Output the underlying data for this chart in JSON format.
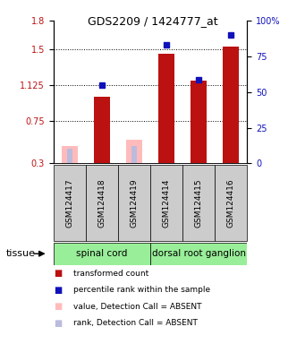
{
  "title": "GDS2209 / 1424777_at",
  "samples": [
    "GSM124417",
    "GSM124418",
    "GSM124419",
    "GSM124414",
    "GSM124415",
    "GSM124416"
  ],
  "bar_values": [
    0.48,
    1.0,
    0.55,
    1.45,
    1.17,
    1.53
  ],
  "rank_values": [
    0.45,
    1.125,
    0.48,
    1.55,
    1.18,
    1.65
  ],
  "absent": [
    true,
    false,
    true,
    false,
    false,
    false
  ],
  "ylim_left": [
    0.3,
    1.8
  ],
  "ylim_right": [
    0,
    100
  ],
  "yticks_left": [
    0.3,
    0.75,
    1.125,
    1.5,
    1.8
  ],
  "yticks_right": [
    0,
    25,
    50,
    75,
    100
  ],
  "ytick_labels_left": [
    "0.3",
    "0.75",
    "1.125",
    "1.5",
    "1.8"
  ],
  "ytick_labels_right": [
    "0",
    "25",
    "50",
    "75",
    "100%"
  ],
  "red_color": "#bb1111",
  "pink_color": "#ffbbbb",
  "blue_color": "#1111bb",
  "light_blue_color": "#bbbbdd",
  "green_tissue_color": "#99ee99",
  "bar_width": 0.5,
  "marker_size": 5,
  "spinal_cord_samples": [
    0,
    1,
    2
  ],
  "dorsal_samples": [
    3,
    4,
    5
  ],
  "tissue_labels": [
    "spinal cord",
    "dorsal root ganglion"
  ],
  "legend_items": [
    [
      "#bb1111",
      "transformed count"
    ],
    [
      "#1111bb",
      "percentile rank within the sample"
    ],
    [
      "#ffbbbb",
      "value, Detection Call = ABSENT"
    ],
    [
      "#bbbbdd",
      "rank, Detection Call = ABSENT"
    ]
  ]
}
